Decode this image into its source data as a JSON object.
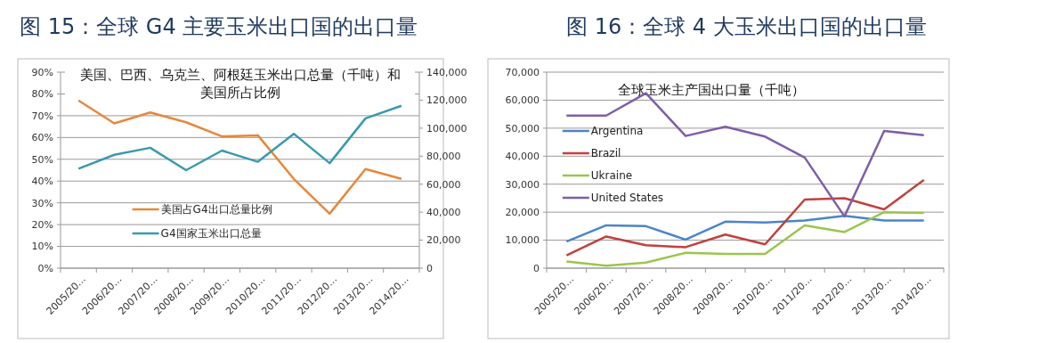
{
  "chart_data": [
    {
      "type": "line",
      "title": "图 15：全球 G4 主要玉米出口国的出口量",
      "subtitle": "美国、巴西、乌克兰、阿根廷玉米出口总量（千吨）和美国所占比例",
      "categories": [
        "2005/20…",
        "2006/20…",
        "2007/20…",
        "2008/20…",
        "2009/20…",
        "2010/20…",
        "2011/20…",
        "2012/20…",
        "2013/20…",
        "2014/20…"
      ],
      "series": [
        {
          "name": "美国占G4出口总量比例",
          "color": "#e6883a",
          "values": [
            77,
            66.5,
            71.5,
            67,
            60.5,
            61,
            41,
            25,
            45.5,
            41
          ]
        },
        {
          "name": "G4国家玉米出口总量",
          "color": "#3a9aad",
          "axis": "y2",
          "values": [
            71000,
            81000,
            86000,
            70000,
            84000,
            76000,
            96000,
            75000,
            107000,
            116000
          ]
        }
      ],
      "ylim": [
        0,
        90
      ],
      "yticks": [
        {
          "value": 0,
          "label": "0%"
        },
        {
          "value": 10,
          "label": "10%"
        },
        {
          "value": 20,
          "label": "20%"
        },
        {
          "value": 30,
          "label": "30%"
        },
        {
          "value": 40,
          "label": "40%"
        },
        {
          "value": 50,
          "label": "50%"
        },
        {
          "value": 60,
          "label": "60%"
        },
        {
          "value": 70,
          "label": "70%"
        },
        {
          "value": 80,
          "label": "80%"
        },
        {
          "value": 90,
          "label": "90%"
        }
      ],
      "y2lim": [
        0,
        140000
      ],
      "y2ticks": [
        0,
        {
          "value": 20000,
          "label": "20,000"
        },
        {
          "value": 40000,
          "label": "40,000"
        },
        {
          "value": 60000,
          "label": "60,000"
        },
        {
          "value": 80000,
          "label": "80,000"
        },
        {
          "value": 100000,
          "label": "100,000"
        },
        {
          "value": 120000,
          "label": "120,000"
        },
        {
          "value": 140000,
          "label": "140,000"
        }
      ],
      "grid": "y",
      "legend": "bottom left",
      "marker": "none",
      "line_style": "solid"
    },
    {
      "type": "line",
      "title": "图 16：全球 4 大玉米出口国的出口量",
      "subtitle": "全球玉米主产国出口量（千吨）",
      "categories": [
        "2005/20…",
        "2006/20…",
        "2007/20…",
        "2008/20…",
        "2009/20…",
        "2010/20…",
        "2011/20…",
        "2012/20…",
        "2013/20…",
        "2014/20…"
      ],
      "series": [
        {
          "name": "Argentina",
          "color": "#4a85c8",
          "values": [
            9500,
            15300,
            15000,
            10200,
            16600,
            16300,
            17000,
            18700,
            17000,
            17000
          ]
        },
        {
          "name": "Brazil",
          "color": "#c0413d",
          "values": [
            4600,
            11300,
            8200,
            7500,
            12000,
            8500,
            24500,
            25000,
            21000,
            31500
          ]
        },
        {
          "name": "Ukraine",
          "color": "#9bc54e",
          "values": [
            2400,
            900,
            2000,
            5500,
            5100,
            5100,
            15300,
            12900,
            20000,
            19700
          ]
        },
        {
          "name": "United States",
          "color": "#7f5ea8",
          "values": [
            54500,
            54500,
            62500,
            47200,
            50500,
            47000,
            39500,
            18500,
            49000,
            47500
          ]
        }
      ],
      "ylim": [
        0,
        70000
      ],
      "yticks": [
        0,
        {
          "value": 10000,
          "label": "10,000"
        },
        {
          "value": 20000,
          "label": "20,000"
        },
        {
          "value": 30000,
          "label": "30,000"
        },
        {
          "value": 40000,
          "label": "40,000"
        },
        {
          "value": 50000,
          "label": "50,000"
        },
        {
          "value": 60000,
          "label": "60,000"
        },
        {
          "value": 70000,
          "label": "70,000"
        }
      ],
      "grid": "y",
      "legend": "left",
      "marker": "none",
      "line_style": "solid"
    }
  ]
}
